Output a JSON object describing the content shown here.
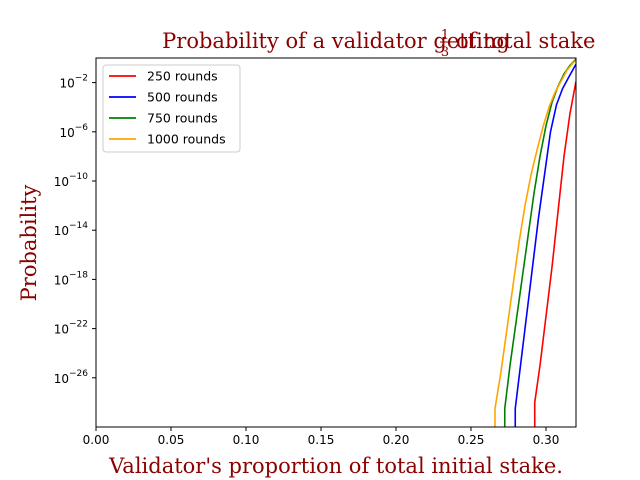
{
  "chart_data": {
    "type": "line",
    "title_parts": {
      "before": "Probability of a validator getting ",
      "frac_num": "1",
      "frac_den": "3",
      "after": " of total stake"
    },
    "xlabel": "Validator's proportion of total initial stake.",
    "ylabel": "Probability",
    "xlim": [
      0.0,
      0.32
    ],
    "ylim_log10": [
      -30,
      0
    ],
    "yscale": "log",
    "x_ticks": [
      "0.00",
      "0.05",
      "0.10",
      "0.15",
      "0.20",
      "0.25",
      "0.30"
    ],
    "y_ticks": [
      {
        "base": "10",
        "exp": "−2"
      },
      {
        "base": "10",
        "exp": "−6"
      },
      {
        "base": "10",
        "exp": "−10"
      },
      {
        "base": "10",
        "exp": "−14"
      },
      {
        "base": "10",
        "exp": "−18"
      },
      {
        "base": "10",
        "exp": "−22"
      },
      {
        "base": "10",
        "exp": "−26"
      }
    ],
    "title_color": "#8b0000",
    "grid": false,
    "legend_position": "upper-left",
    "series": [
      {
        "name": "250 rounds",
        "color": "#ff0000",
        "points": [
          [
            0.2925,
            -31.5
          ],
          [
            0.2925,
            -28.0
          ],
          [
            0.296,
            -25.0
          ],
          [
            0.3,
            -21.0
          ],
          [
            0.304,
            -17.0
          ],
          [
            0.308,
            -12.5
          ],
          [
            0.312,
            -8.0
          ],
          [
            0.316,
            -4.5
          ],
          [
            0.32,
            -1.9
          ]
        ]
      },
      {
        "name": "500 rounds",
        "color": "#0000ff",
        "points": [
          [
            0.2795,
            -31.5
          ],
          [
            0.2795,
            -28.5
          ],
          [
            0.283,
            -25.0
          ],
          [
            0.287,
            -21.0
          ],
          [
            0.291,
            -17.0
          ],
          [
            0.295,
            -13.0
          ],
          [
            0.299,
            -9.5
          ],
          [
            0.303,
            -6.0
          ],
          [
            0.307,
            -3.8
          ],
          [
            0.311,
            -2.5
          ],
          [
            0.315,
            -1.6
          ],
          [
            0.32,
            -0.5
          ]
        ]
      },
      {
        "name": "750 rounds",
        "color": "#008000",
        "points": [
          [
            0.2725,
            -31.5
          ],
          [
            0.2725,
            -28.5
          ],
          [
            0.276,
            -25.0
          ],
          [
            0.28,
            -21.5
          ],
          [
            0.284,
            -18.0
          ],
          [
            0.288,
            -14.5
          ],
          [
            0.292,
            -11.0
          ],
          [
            0.296,
            -8.0
          ],
          [
            0.3,
            -5.5
          ],
          [
            0.304,
            -3.6
          ],
          [
            0.308,
            -2.3
          ],
          [
            0.312,
            -1.3
          ],
          [
            0.316,
            -0.6
          ],
          [
            0.32,
            -0.1
          ]
        ]
      },
      {
        "name": "1000 rounds",
        "color": "#ffa500",
        "points": [
          [
            0.266,
            -31.5
          ],
          [
            0.266,
            -28.5
          ],
          [
            0.27,
            -25.5
          ],
          [
            0.274,
            -22.0
          ],
          [
            0.278,
            -18.5
          ],
          [
            0.282,
            -15.0
          ],
          [
            0.286,
            -12.0
          ],
          [
            0.29,
            -9.5
          ],
          [
            0.294,
            -7.5
          ],
          [
            0.298,
            -5.6
          ],
          [
            0.302,
            -4.0
          ],
          [
            0.306,
            -2.8
          ],
          [
            0.31,
            -1.9
          ],
          [
            0.314,
            -1.0
          ],
          [
            0.318,
            -0.4
          ],
          [
            0.32,
            -0.2
          ]
        ]
      }
    ]
  }
}
